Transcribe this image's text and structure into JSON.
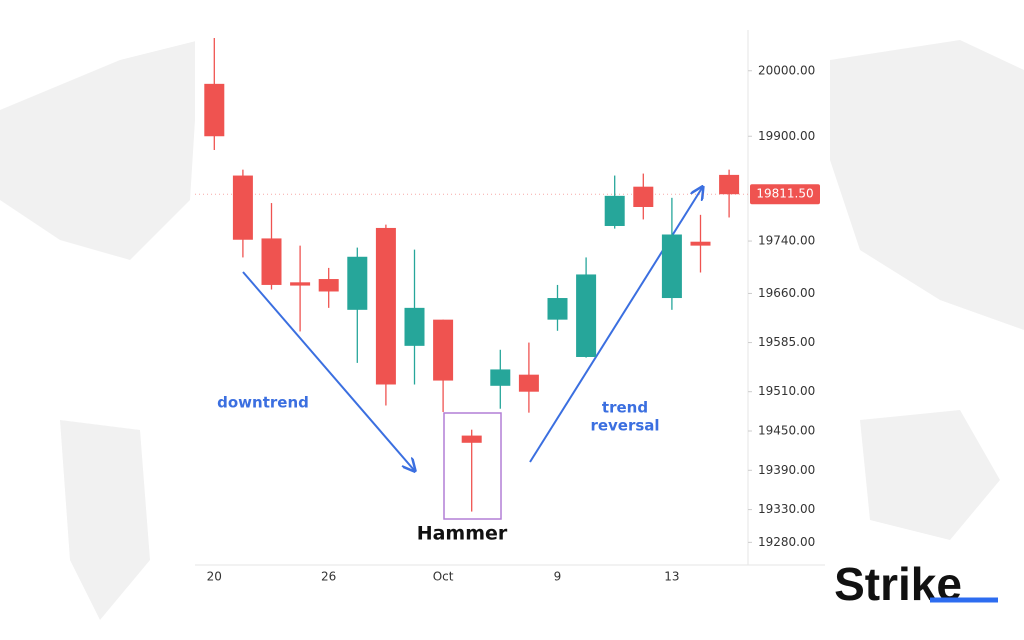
{
  "chart_data": {
    "type": "candlestick",
    "categories": [
      "20",
      null,
      null,
      null,
      "26",
      null,
      null,
      null,
      "Oct",
      null,
      null,
      null,
      "9",
      null,
      null,
      null,
      "13",
      null,
      null
    ],
    "open": [
      19980,
      19840,
      19744,
      19677,
      19682,
      19635,
      19760,
      19580,
      19620,
      19443,
      19519,
      19536,
      19620,
      19563,
      19763,
      19823,
      19653,
      19739,
      19841
    ],
    "high": [
      20050,
      19849,
      19798,
      19733,
      19699,
      19730,
      19765,
      19727,
      19620,
      19452,
      19574,
      19585,
      19673,
      19715,
      19840,
      19843,
      19806,
      19780,
      19849
    ],
    "low": [
      19879,
      19715,
      19666,
      19602,
      19638,
      19554,
      19489,
      19521,
      19479,
      19327,
      19484,
      19478,
      19603,
      19562,
      19759,
      19773,
      19635,
      19692,
      19776
    ],
    "close": [
      19900,
      19742,
      19673,
      19672,
      19663,
      19716,
      19521,
      19638,
      19527,
      19432,
      19544,
      19510,
      19653,
      19689,
      19809,
      19792,
      19750,
      19733,
      19811.5
    ],
    "up_color": "#26a69a",
    "down_color": "#ef5350",
    "ylim": [
      19250,
      20050
    ],
    "yticks": [
      {
        "value": 20000,
        "label": "20000.00"
      },
      {
        "value": 19900,
        "label": "19900.00"
      },
      {
        "value": 19740,
        "label": "19740.00"
      },
      {
        "value": 19660,
        "label": "19660.00"
      },
      {
        "value": 19585,
        "label": "19585.00"
      },
      {
        "value": 19510,
        "label": "19510.00"
      },
      {
        "value": 19450,
        "label": "19450.00"
      },
      {
        "value": 19390,
        "label": "19390.00"
      },
      {
        "value": 19330,
        "label": "19330.00"
      },
      {
        "value": 19280,
        "label": "19280.00"
      }
    ],
    "last_price": {
      "value": 19811.5,
      "label": "19811.50"
    },
    "annotations": {
      "downtrend": "downtrend",
      "reversal": [
        "trend",
        "reversal"
      ],
      "hammer": "Hammer"
    }
  },
  "brand": "Strike"
}
